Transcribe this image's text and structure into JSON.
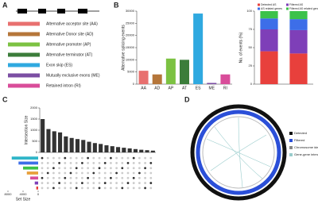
{
  "panel_labels": [
    "A",
    "B",
    "C",
    "D"
  ],
  "as_types": [
    "Alternative acceptor site (AA)",
    "Alternative Donor site (AD)",
    "Alternative promoter (AP)",
    "Alternative terminator (AT)",
    "Exon skip (ES)",
    "Mutually exclusive exons (ME)",
    "Retained intron (RI)"
  ],
  "circos_legend": [
    "Detected",
    "Filtered",
    "Chromosome ideogram",
    "Gene-gene interaction"
  ],
  "chart_data": [
    {
      "type": "bar",
      "ylabel": "Alternative splicing events",
      "categories": [
        "AA",
        "AD",
        "AP",
        "AT",
        "ES",
        "ME",
        "RI"
      ],
      "values": [
        5500,
        4000,
        10500,
        10000,
        29000,
        500,
        4000
      ],
      "colors": [
        "#e8706f",
        "#b5763a",
        "#7cc242",
        "#3b7d3a",
        "#2fa9e0",
        "#7b4ea3",
        "#d94d9a"
      ],
      "ylim": [
        0,
        30000
      ],
      "yticks": [
        0,
        5000,
        10000,
        15000,
        20000,
        25000,
        30000
      ]
    },
    {
      "type": "stacked",
      "ylabel": "No. of events (%)",
      "categories": [
        null,
        null
      ],
      "series": [
        {
          "name": "Detected AS",
          "color": "#e8403c",
          "values": [
            45,
            42
          ]
        },
        {
          "name": "Filtered AS",
          "color": "#7e3fb8",
          "values": [
            30,
            32
          ]
        },
        {
          "name": "AS related genes",
          "color": "#3d6ee8",
          "values": [
            15,
            15
          ]
        },
        {
          "name": "Filtered AS related genes",
          "color": "#3cc24a",
          "values": [
            10,
            11
          ]
        }
      ],
      "ylim": [
        0,
        100
      ],
      "yticks": [
        0,
        25,
        50,
        75,
        100
      ]
    },
    {
      "type": "bar",
      "ylabel": "Intersection Size",
      "categories": [
        null,
        null,
        null,
        null,
        null,
        null,
        null,
        null,
        null,
        null,
        null,
        null,
        null,
        null,
        null,
        null,
        null,
        null,
        null,
        null
      ],
      "values": [
        1500,
        1050,
        950,
        900,
        720,
        650,
        600,
        560,
        480,
        420,
        380,
        320,
        280,
        240,
        210,
        180,
        150,
        120,
        100,
        80
      ],
      "color": "#333333",
      "ylim": [
        0,
        2000
      ],
      "yticks": [
        0,
        500,
        1000,
        1500,
        2000
      ]
    },
    {
      "type": "hbar",
      "xlabel": "Set Size",
      "categories": [
        null,
        null,
        null,
        null,
        null,
        null,
        null
      ],
      "values": [
        7000,
        5200,
        4000,
        3000,
        2100,
        900,
        500
      ],
      "colors": [
        "#2fb5c8",
        "#3d6ee8",
        "#3cc24a",
        "#e8a03c",
        "#d94d9a",
        "#7e3fb8",
        "#e8403c"
      ],
      "xlim": [
        8000,
        0
      ],
      "xticks": [
        0,
        4000,
        8000
      ]
    }
  ]
}
